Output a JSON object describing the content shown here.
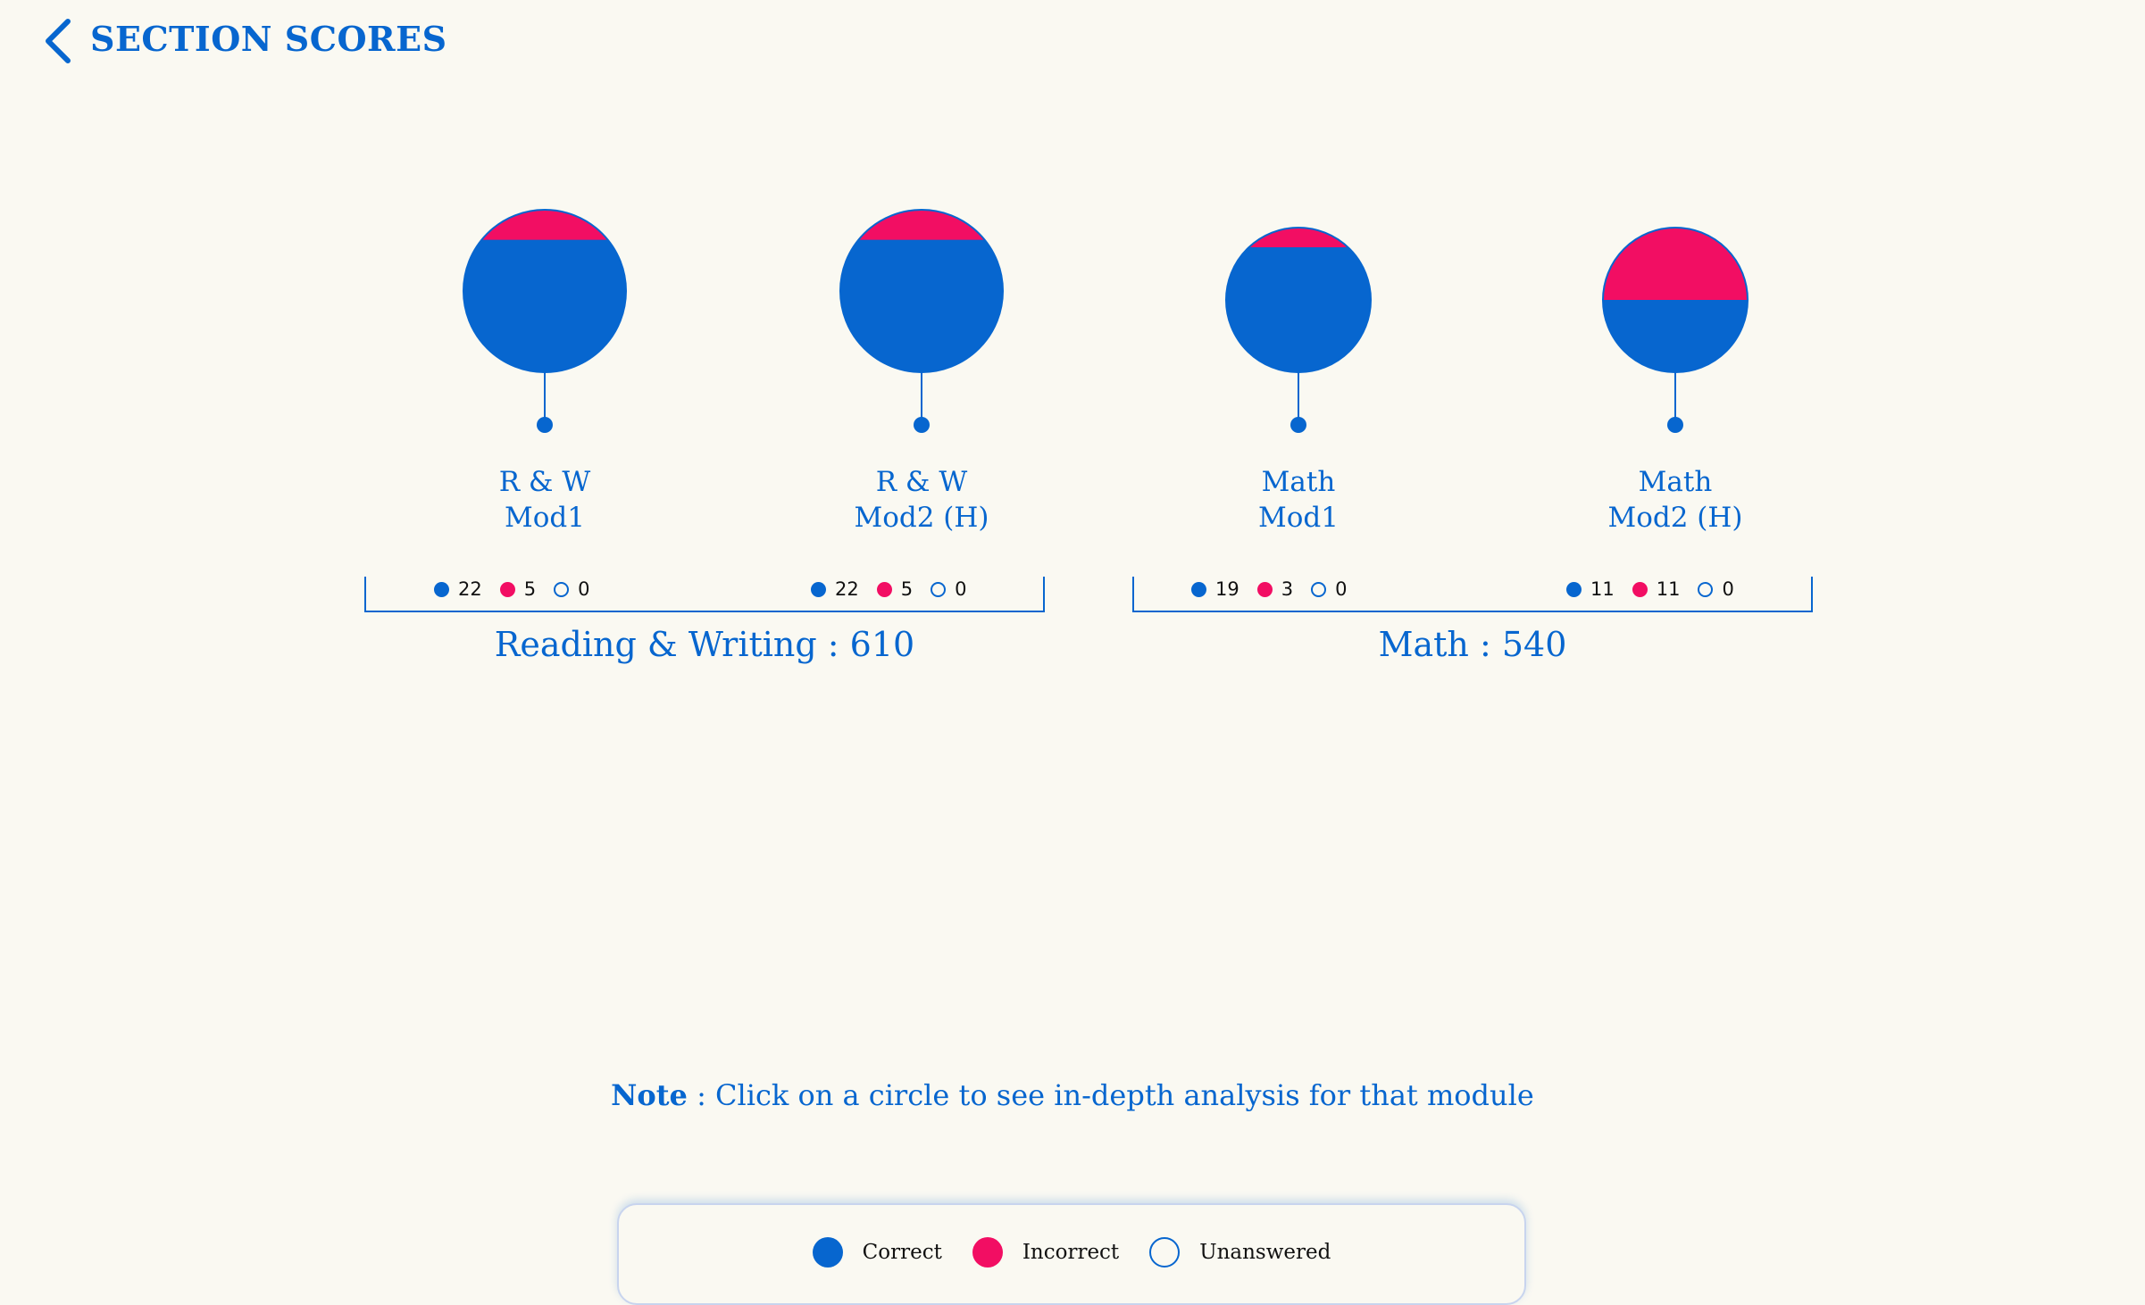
{
  "header": {
    "title": "SECTION SCORES",
    "back_icon": "chevron-left-icon"
  },
  "colors": {
    "correct": "#0766cf",
    "incorrect": "#f20e63",
    "background": "#faf9f2"
  },
  "modules": [
    {
      "label_line1": "R & W",
      "label_line2": "Mod1",
      "correct": 22,
      "incorrect": 5,
      "unanswered": 0,
      "incorrect_fraction": 0.185
    },
    {
      "label_line1": "R & W",
      "label_line2": "Mod2 (H)",
      "correct": 22,
      "incorrect": 5,
      "unanswered": 0,
      "incorrect_fraction": 0.185
    },
    {
      "label_line1": "Math",
      "label_line2": "Mod1",
      "correct": 19,
      "incorrect": 3,
      "unanswered": 0,
      "incorrect_fraction": 0.136
    },
    {
      "label_line1": "Math",
      "label_line2": "Mod2 (H)",
      "correct": 11,
      "incorrect": 11,
      "unanswered": 0,
      "incorrect_fraction": 0.5
    }
  ],
  "sections": [
    {
      "score_text": "Reading & Writing : 610"
    },
    {
      "score_text": "Math : 540"
    }
  ],
  "note": {
    "prefix": "Note",
    "text": " : Click on a circle to see in-depth analysis for that module"
  },
  "legend": {
    "correct": "Correct",
    "incorrect": "Incorrect",
    "unanswered": "Unanswered"
  }
}
